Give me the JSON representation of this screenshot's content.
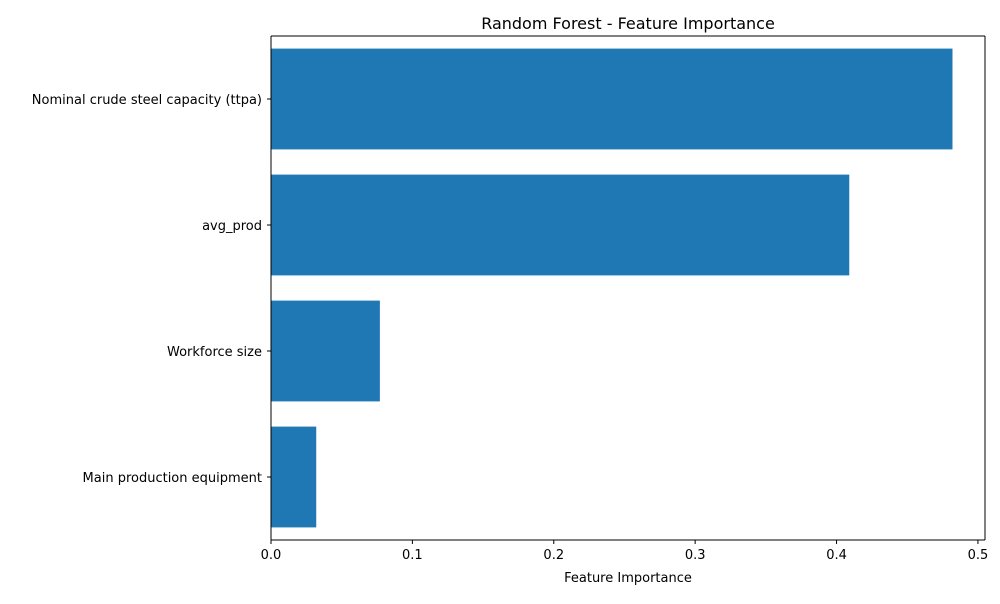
{
  "chart_data": {
    "type": "bar",
    "orientation": "horizontal",
    "title": "Random Forest - Feature Importance",
    "xlabel": "Feature Importance",
    "ylabel": "",
    "categories": [
      "Nominal crude steel capacity (ttpa)",
      "avg_prod",
      "Workforce size",
      "Main production equipment"
    ],
    "values": [
      0.482,
      0.409,
      0.077,
      0.032
    ],
    "xlim": [
      0,
      0.505
    ],
    "xticks": [
      0.0,
      0.1,
      0.2,
      0.3,
      0.4,
      0.5
    ],
    "xtick_labels": [
      "0.0",
      "0.1",
      "0.2",
      "0.3",
      "0.4",
      "0.5"
    ],
    "bar_color": "#1f77b4",
    "grid": false,
    "legend": null
  }
}
